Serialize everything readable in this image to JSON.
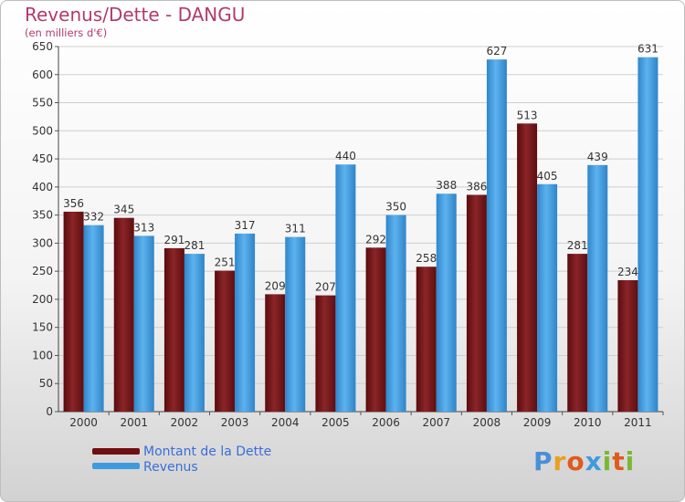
{
  "header": {
    "title": "Revenus/Dette - DANGU",
    "subtitle": "(en milliers d'€)"
  },
  "colors": {
    "dette": "#6e0f12",
    "revenus": "#3f9ae0",
    "title": "#b23a6e",
    "grid": "#cfcfcf"
  },
  "chart_data": {
    "type": "bar",
    "title": "Revenus/Dette - DANGU",
    "subtitle": "(en milliers d'€)",
    "categories": [
      "2000",
      "2001",
      "2002",
      "2003",
      "2004",
      "2005",
      "2006",
      "2007",
      "2008",
      "2009",
      "2010",
      "2011"
    ],
    "series": [
      {
        "name": "Montant de la Dette",
        "values": [
          356,
          345,
          291,
          251,
          209,
          207,
          292,
          258,
          386,
          513,
          281,
          234
        ]
      },
      {
        "name": "Revenus",
        "values": [
          332,
          313,
          281,
          317,
          311,
          440,
          350,
          388,
          627,
          405,
          439,
          631
        ]
      }
    ],
    "ylim": [
      0,
      650
    ],
    "yticks": [
      0,
      50,
      100,
      150,
      200,
      250,
      300,
      350,
      400,
      450,
      500,
      550,
      600,
      650
    ],
    "grid": true,
    "legend_position": "bottom-left"
  },
  "legend": {
    "items": [
      {
        "label": "Montant de la Dette"
      },
      {
        "label": "Revenus"
      }
    ]
  },
  "logo": {
    "letters": [
      "P",
      "r",
      "o",
      "x",
      "i",
      "t",
      "i"
    ],
    "colors": [
      "#4a8fd6",
      "#e8a020",
      "#e05a1c",
      "#3f9ae0",
      "#7bb832",
      "#e05a1c",
      "#7bb832"
    ]
  }
}
